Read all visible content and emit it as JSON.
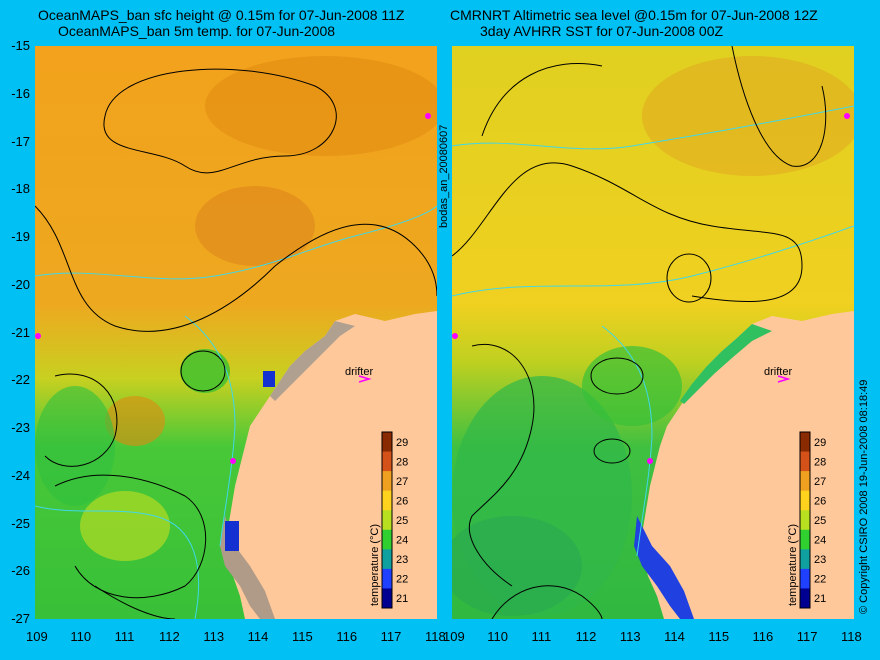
{
  "left_panel": {
    "title_line1": "OceanMAPS_ban sfc height @ 0.15m for 07-Jun-2008 11Z",
    "title_line2": "OceanMAPS_ban 5m temp. for 07-Jun-2008",
    "drifter_label": "drifter",
    "colorbar_title": "temperature (°C)"
  },
  "right_panel": {
    "title_line1": "CMRNRT Altimetric sea level  @0.15m  for 07-Jun-2008 12Z",
    "title_line2": "3day AVHRR SST for 07-Jun-2008 00Z",
    "drifter_label": "drifter",
    "colorbar_title": "temperature (°C)"
  },
  "axes": {
    "y_ticks": [
      "-15",
      "-16",
      "-17",
      "-18",
      "-19",
      "-20",
      "-21",
      "-22",
      "-23",
      "-24",
      "-25",
      "-26",
      "-27"
    ],
    "x_ticks": [
      "109",
      "110",
      "111",
      "112",
      "113",
      "114",
      "115",
      "116",
      "117",
      "118"
    ]
  },
  "colorbar": {
    "ticks": [
      "29",
      "28",
      "27",
      "26",
      "25",
      "24",
      "23",
      "22",
      "21"
    ],
    "colors": [
      "#8a2a00",
      "#d4521a",
      "#f0a020",
      "#ffd21e",
      "#b8e020",
      "#30d030",
      "#10a0a0",
      "#2040ff",
      "#000090"
    ]
  },
  "side_text": {
    "left_vertical": "bodas_an_20080607",
    "right_vertical": "© Copyright CSIRO 2008  19-Jun-2008 08:18:49"
  },
  "colors": {
    "background": "#00c0f4",
    "land": "#ffc89a",
    "contour": "#000000",
    "isobath": "#40d8e8",
    "drifter": "#ff00ff"
  }
}
